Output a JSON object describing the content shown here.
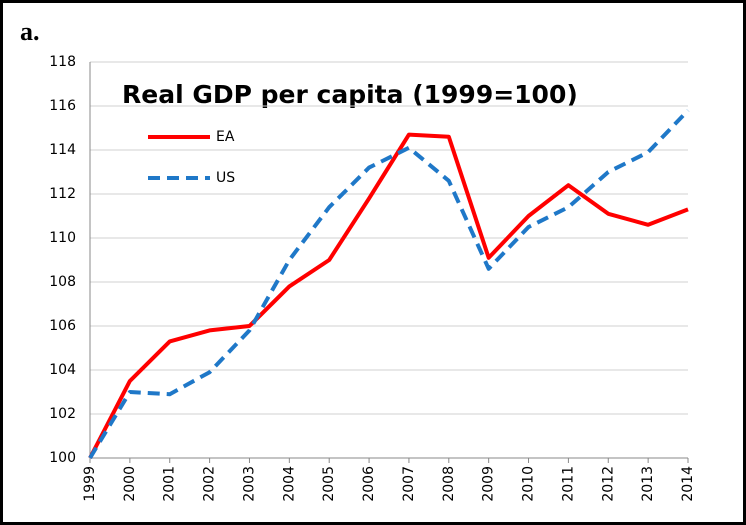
{
  "panel_label": "a.",
  "chart_data": {
    "type": "line",
    "title": "Real GDP per capita (1999=100)",
    "categories": [
      "1999",
      "2000",
      "2001",
      "2002",
      "2003",
      "2004",
      "2005",
      "2006",
      "2007",
      "2008",
      "2009",
      "2010",
      "2011",
      "2012",
      "2013",
      "2014"
    ],
    "series": [
      {
        "name": "EA",
        "color": "#ff0000",
        "dash": false,
        "values": [
          100,
          103.5,
          105.3,
          105.8,
          106.0,
          107.8,
          109.0,
          111.8,
          114.7,
          114.6,
          109.1,
          111.0,
          112.4,
          111.1,
          110.6,
          111.3
        ]
      },
      {
        "name": "US",
        "color": "#1f78c8",
        "dash": true,
        "values": [
          100,
          103.0,
          102.9,
          103.9,
          105.8,
          109.0,
          111.4,
          113.2,
          114.1,
          112.6,
          108.6,
          110.5,
          111.4,
          113.0,
          113.9,
          115.8
        ]
      }
    ],
    "ylim": [
      100,
      118
    ],
    "yticks": [
      100,
      102,
      104,
      106,
      108,
      110,
      112,
      114,
      116,
      118
    ],
    "grid": true
  }
}
